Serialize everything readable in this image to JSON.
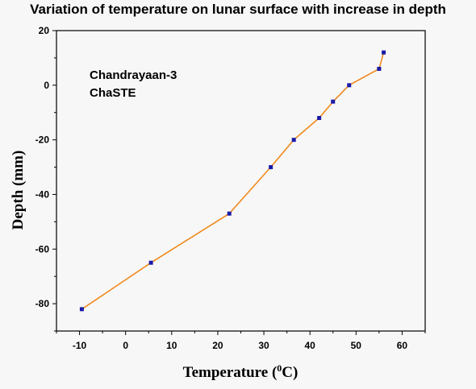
{
  "chart_data": {
    "type": "line",
    "title": "Variation of temperature on lunar surface with increase in depth",
    "xlabel": "Temperature (",
    "xlabel_sup": "0",
    "xlabel_suffix": "C)",
    "ylabel": "Depth (mm)",
    "xlim": [
      -15,
      65
    ],
    "ylim": [
      -90,
      20
    ],
    "xticks": [
      -10,
      0,
      10,
      20,
      30,
      40,
      50,
      60
    ],
    "yticks": [
      20,
      0,
      -20,
      -40,
      -60,
      -80
    ],
    "grid": false,
    "annotations": [
      "Chandrayaan-3",
      "ChaSTE"
    ],
    "line_color": "#f08a1e",
    "marker_color": "#1a1aa8",
    "points": [
      {
        "x": -9.5,
        "y": -82
      },
      {
        "x": 5.5,
        "y": -65
      },
      {
        "x": 22.5,
        "y": -47
      },
      {
        "x": 31.5,
        "y": -30
      },
      {
        "x": 36.5,
        "y": -20
      },
      {
        "x": 42,
        "y": -12
      },
      {
        "x": 45,
        "y": -6
      },
      {
        "x": 48.5,
        "y": 0
      },
      {
        "x": 55,
        "y": 6
      },
      {
        "x": 56,
        "y": 12
      }
    ]
  }
}
